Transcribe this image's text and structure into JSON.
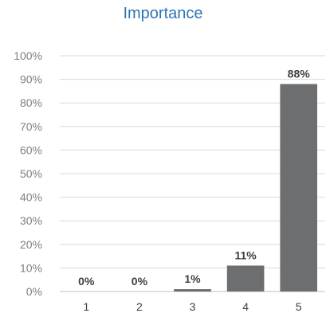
{
  "chart_data": {
    "type": "bar",
    "title": "Importance",
    "categories": [
      "1",
      "2",
      "3",
      "4",
      "5"
    ],
    "values": [
      0,
      0,
      1,
      11,
      88
    ],
    "data_labels": [
      "0%",
      "0%",
      "1%",
      "11%",
      "88%"
    ],
    "y_ticks": [
      "0%",
      "10%",
      "20%",
      "30%",
      "40%",
      "50%",
      "60%",
      "70%",
      "80%",
      "90%",
      "100%"
    ],
    "ylim": [
      0,
      100
    ],
    "xlabel": "",
    "ylabel": "",
    "grid": true,
    "bar_color": "#6d6e70",
    "title_color": "#2e74b5"
  }
}
